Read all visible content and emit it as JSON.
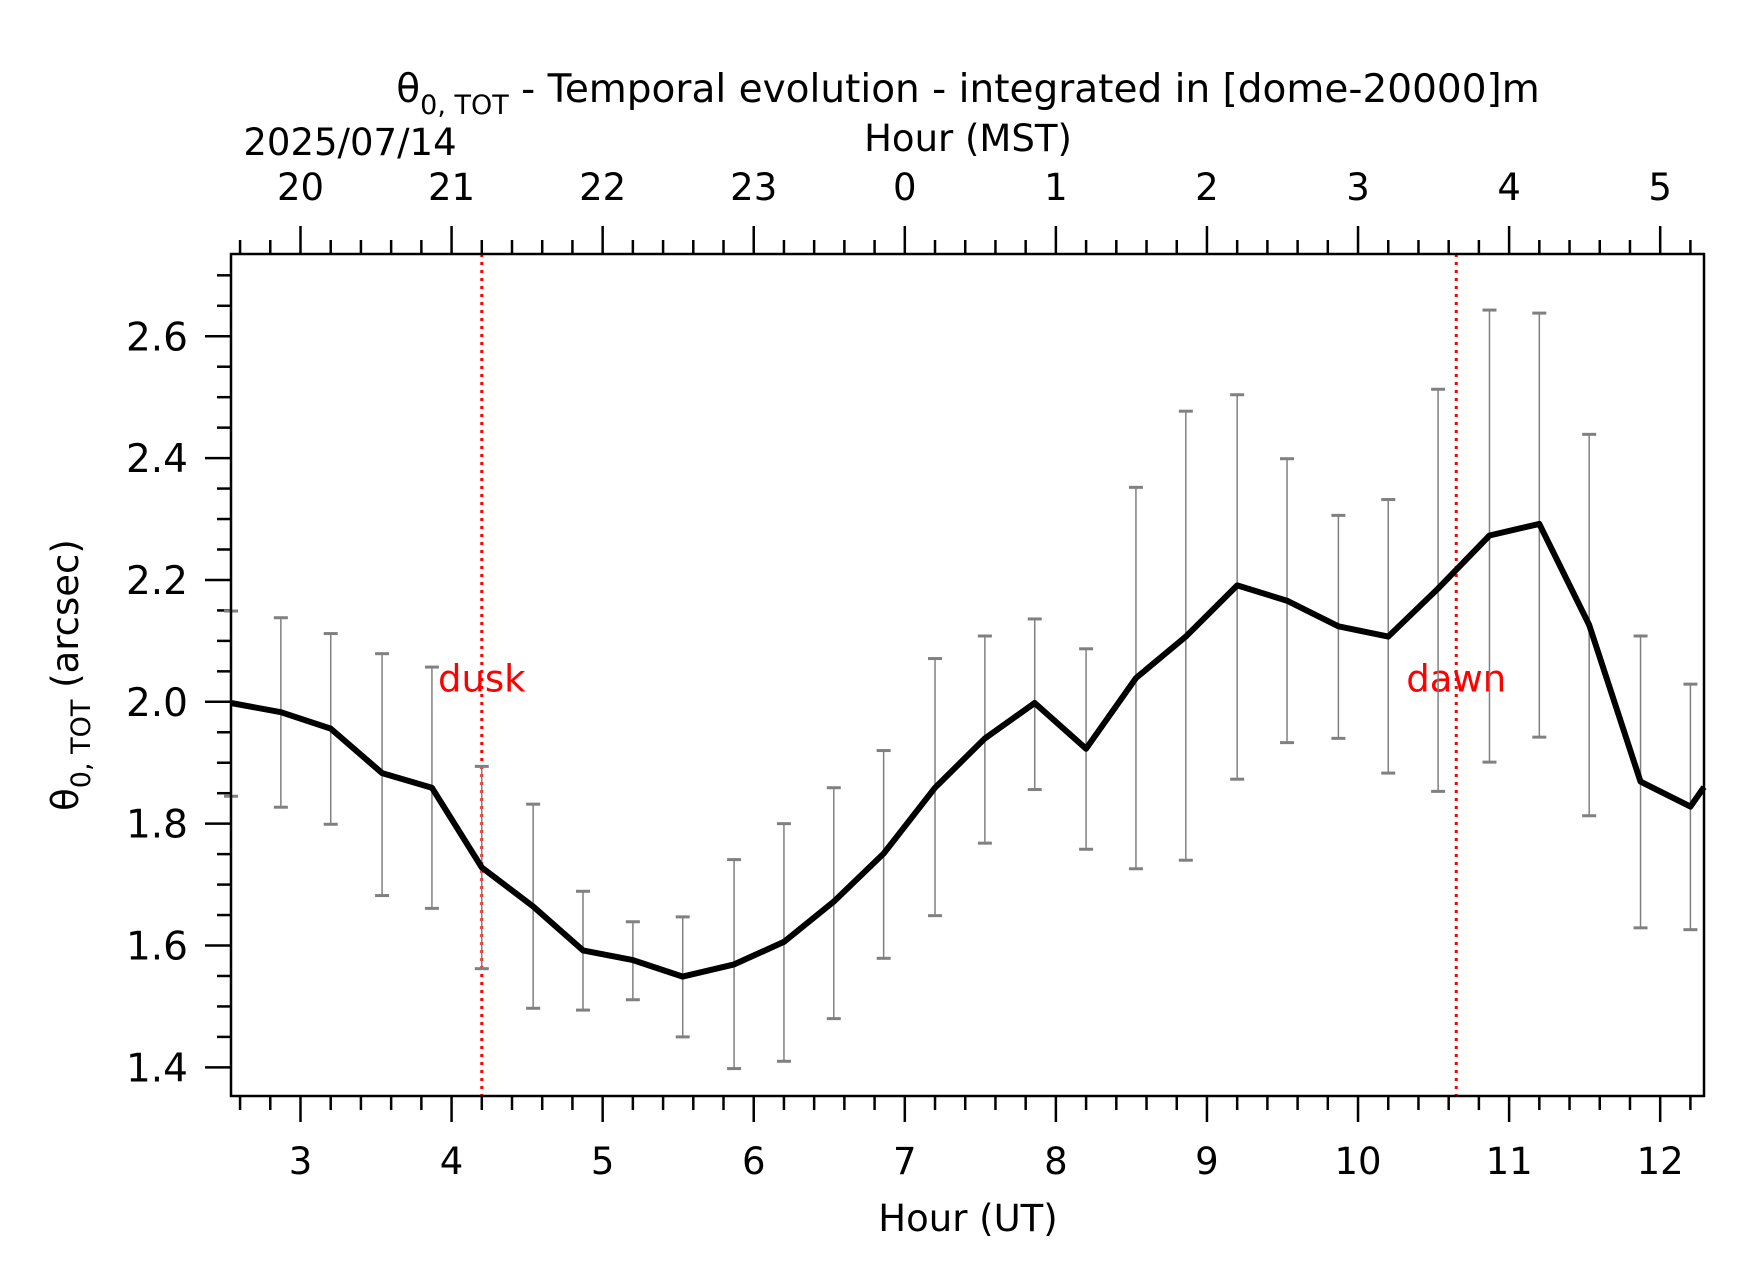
{
  "chart_data": {
    "type": "line",
    "title_prefix": "θ",
    "title_sub": "0, TOT",
    "title_rest": " - Temporal evolution - integrated in [dome-20000]m",
    "date_label": "2025/07/14",
    "top_xlabel": "Hour (MST)",
    "xlabel": "Hour (UT)",
    "ylabel_prefix": "θ",
    "ylabel_sub": "0, TOT",
    "ylabel_rest": " (arcsec)",
    "xlim": [
      2.54,
      12.29
    ],
    "ylim": [
      1.353,
      2.735
    ],
    "x_ticks": [
      3,
      4,
      5,
      6,
      7,
      8,
      9,
      10,
      11,
      12
    ],
    "x_tick_labels": [
      "3",
      "4",
      "5",
      "6",
      "7",
      "8",
      "9",
      "10",
      "11",
      "12"
    ],
    "top_ticks": [
      3,
      4,
      5,
      6,
      7,
      8,
      9,
      10,
      11,
      12
    ],
    "top_tick_labels": [
      "20",
      "21",
      "22",
      "23",
      "0",
      "1",
      "2",
      "3",
      "4",
      "5"
    ],
    "y_ticks": [
      1.4,
      1.6,
      1.8,
      2.0,
      2.2,
      2.4,
      2.6
    ],
    "y_tick_labels": [
      "1.4",
      "1.6",
      "1.8",
      "2.0",
      "2.2",
      "2.4",
      "2.6"
    ],
    "grid": false,
    "series": [
      {
        "x": [
          2.54,
          2.87,
          3.2,
          3.54,
          3.87,
          4.2,
          4.54,
          4.87,
          5.2,
          5.53,
          5.87,
          6.2,
          6.53,
          6.86,
          7.2,
          7.53,
          7.86,
          8.2,
          8.53,
          8.86,
          9.2,
          9.53,
          9.87,
          10.2,
          10.53,
          10.87,
          11.2,
          11.53,
          11.87,
          12.2,
          12.29
        ],
        "y": [
          1.998,
          1.983,
          1.956,
          1.883,
          1.859,
          1.728,
          1.664,
          1.592,
          1.576,
          1.549,
          1.569,
          1.606,
          1.672,
          1.751,
          1.859,
          1.94,
          1.998,
          1.923,
          2.039,
          2.107,
          2.191,
          2.166,
          2.124,
          2.107,
          2.186,
          2.273,
          2.292,
          2.126,
          1.869,
          1.828,
          1.86
        ],
        "yerr_low": [
          1.845,
          1.827,
          1.799,
          1.682,
          1.661,
          1.562,
          1.497,
          1.494,
          1.511,
          1.45,
          1.398,
          1.41,
          1.48,
          1.579,
          1.649,
          1.768,
          1.856,
          1.758,
          1.726,
          1.74,
          1.873,
          1.933,
          1.94,
          1.883,
          1.853,
          1.901,
          1.942,
          1.813,
          1.629,
          1.626,
          null
        ],
        "yerr_high": [
          2.149,
          2.138,
          2.112,
          2.079,
          2.057,
          1.894,
          1.832,
          1.689,
          1.639,
          1.647,
          1.741,
          1.8,
          1.859,
          1.92,
          2.071,
          2.108,
          2.136,
          2.087,
          2.352,
          2.477,
          2.504,
          2.399,
          2.306,
          2.332,
          2.513,
          2.643,
          2.638,
          2.439,
          2.108,
          2.029,
          null
        ]
      }
    ],
    "vlines": [
      {
        "x": 4.2,
        "label": "dusk",
        "label_y": 2.04
      },
      {
        "x": 10.65,
        "label": "dawn",
        "label_y": 2.04
      }
    ],
    "colors": {
      "line": "#000000",
      "errorbar": "#808080",
      "event_line": "#ff0000",
      "event_text": "#ff0000"
    }
  }
}
